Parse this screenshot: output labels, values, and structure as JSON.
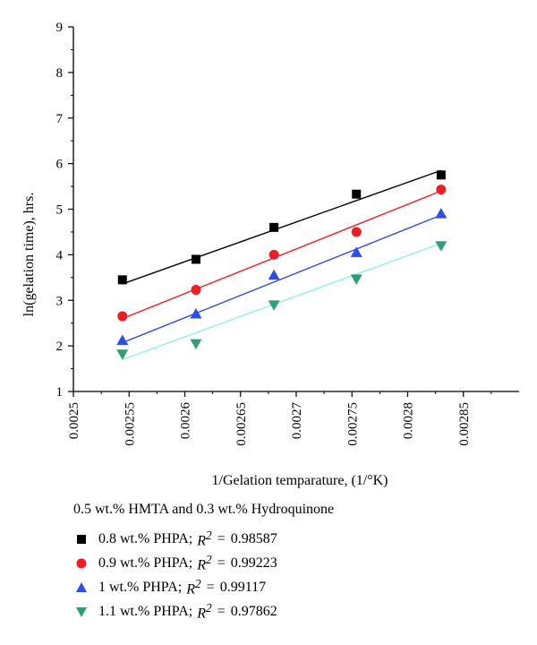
{
  "chart_data": {
    "type": "scatter",
    "xlabel": "1/Gelation temparature, (1/°K)",
    "ylabel": "ln(gelation time), hrs.",
    "caption": "0.5 wt.% HMTA and 0.3 wt.% Hydroquinone",
    "xlim": [
      0.0025,
      0.0029
    ],
    "ylim": [
      1,
      9
    ],
    "x_ticks": [
      "0.0025",
      "0.00255",
      "0.0026",
      "0.00265",
      "0.0027",
      "0.00275",
      "0.0028",
      "0.00285"
    ],
    "y_ticks": [
      "1",
      "2",
      "3",
      "4",
      "5",
      "6",
      "7",
      "8",
      "9"
    ],
    "legend_position": "bottom",
    "series": [
      {
        "name": "0.8 wt.% PHPA;",
        "r2_label": "R",
        "r2_sup": "2",
        "r2_eq": "=",
        "r2_value": "0.98587",
        "marker": "square",
        "marker_color": "#000000",
        "line_color": "#000000",
        "x": [
          0.002544,
          0.00261,
          0.00268,
          0.002754,
          0.00283
        ],
        "y": [
          3.45,
          3.9,
          4.6,
          5.33,
          5.75
        ],
        "fit": [
          [
            0.002544,
            3.36
          ],
          [
            0.00283,
            5.85
          ]
        ]
      },
      {
        "name": "0.9 wt.% PHPA;",
        "r2_label": "R",
        "r2_sup": "2",
        "r2_eq": "=",
        "r2_value": "0.99223",
        "marker": "circle",
        "marker_color": "#ee1c24",
        "line_color": "#ee1c24",
        "x": [
          0.002544,
          0.00261,
          0.00268,
          0.002754,
          0.00283
        ],
        "y": [
          2.65,
          3.23,
          4.0,
          4.5,
          5.43
        ],
        "fit": [
          [
            0.002544,
            2.6
          ],
          [
            0.00283,
            5.4
          ]
        ]
      },
      {
        "name": "1 wt.% PHPA;",
        "r2_label": "R",
        "r2_sup": "2",
        "r2_eq": "=",
        "r2_value": "0.99117",
        "marker": "triangle-up",
        "marker_color": "#2e4de8",
        "line_color": "#2e4de8",
        "x": [
          0.002544,
          0.00261,
          0.00268,
          0.002754,
          0.00283
        ],
        "y": [
          2.12,
          2.7,
          3.55,
          4.05,
          4.9
        ],
        "fit": [
          [
            0.002544,
            2.07
          ],
          [
            0.00283,
            4.87
          ]
        ]
      },
      {
        "name": "1.1 wt.% PHPA;",
        "r2_label": "R",
        "r2_sup": "2",
        "r2_eq": "=",
        "r2_value": "0.97862",
        "marker": "triangle-down",
        "marker_color": "#2e9e78",
        "line_color": "#8ff0ea",
        "x": [
          0.002544,
          0.00261,
          0.00268,
          0.002754,
          0.00283
        ],
        "y": [
          1.82,
          2.05,
          2.9,
          3.47,
          4.2
        ],
        "fit": [
          [
            0.002544,
            1.7
          ],
          [
            0.00283,
            4.25
          ]
        ]
      }
    ]
  }
}
